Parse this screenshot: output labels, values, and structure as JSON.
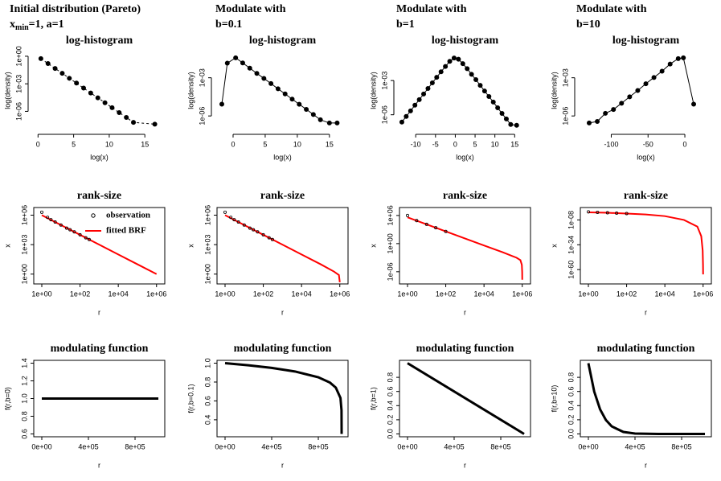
{
  "headers": [
    {
      "line1": "Initial distribution (Pareto)",
      "line2": {
        "base": "x",
        "sub": "min",
        "rest": "=1, a=1"
      }
    },
    {
      "line1": "Modulate with",
      "line2": "b=0.1"
    },
    {
      "line1": "Modulate with",
      "line2": "b=1"
    },
    {
      "line1": "Modulate with",
      "line2": "b=10"
    }
  ],
  "chart_data": [
    {
      "type": "scatter",
      "title": "log-histogram",
      "xlabel": "log(x)",
      "ylabel": "log(density)",
      "ylog": true,
      "frame": false,
      "xlim": [
        -0.6,
        17.8
      ],
      "xticks": [
        0,
        5,
        10,
        15
      ],
      "ylim": [
        1.3e-08,
        2.7
      ],
      "yticks": [
        {
          "value": 1,
          "label": "1e+00"
        },
        {
          "value": 0.001,
          "label": "1e-03"
        },
        {
          "value": 1e-06,
          "label": "1e-06"
        }
      ],
      "series": [
        {
          "color": "#000000",
          "mode": "points+line",
          "dash": true,
          "linewidth": 1,
          "marker": "filled",
          "x": [
            0.4,
            1.4,
            2.4,
            3.4,
            4.4,
            5.4,
            6.4,
            7.4,
            8.4,
            9.4,
            10.4,
            11.4,
            12.4,
            13.4,
            16.4
          ],
          "values": [
            0.55,
            0.16,
            0.047,
            0.014,
            0.004,
            0.0012,
            0.00034,
            0.0001,
            3e-05,
            8.7e-06,
            2.5e-06,
            7.4e-07,
            2.2e-07,
            6.3e-08,
            4e-08
          ]
        }
      ]
    },
    {
      "type": "scatter",
      "title": "log-histogram",
      "xlabel": "log(x)",
      "ylabel": "log(density)",
      "ylog": true,
      "frame": false,
      "xlim": [
        -2.5,
        17.9
      ],
      "xticks": [
        0,
        5,
        10,
        15
      ],
      "ylim": [
        1e-07,
        0.1
      ],
      "yticks": [
        {
          "value": 0.001,
          "label": "1e-03"
        },
        {
          "value": 1e-06,
          "label": "1e-06"
        }
      ],
      "series": [
        {
          "color": "#000000",
          "mode": "points+line",
          "dash": false,
          "linewidth": 1,
          "marker": "filled",
          "x": [
            -1.75,
            -0.9,
            0.4,
            1.5,
            2.6,
            3.7,
            4.8,
            5.9,
            7.0,
            8.1,
            9.2,
            10.3,
            11.4,
            12.5,
            13.6,
            15.0,
            16.2
          ],
          "values": [
            8.5e-06,
            0.014,
            0.037,
            0.0145,
            0.0057,
            0.0022,
            0.00089,
            0.00035,
            0.000135,
            5.4e-05,
            2.1e-05,
            8.3e-06,
            3.3e-06,
            1.3e-06,
            5e-07,
            2.8e-07,
            2.8e-07
          ]
        }
      ]
    },
    {
      "type": "scatter",
      "title": "log-histogram",
      "xlabel": "log(x)",
      "ylabel": "log(density)",
      "ylog": true,
      "frame": false,
      "xlim": [
        -14.1,
        19
      ],
      "xticks": [
        -10,
        -5,
        0,
        5,
        10,
        15
      ],
      "ylim": [
        6e-08,
        0.3
      ],
      "yticks": [
        {
          "value": 0.001,
          "label": "1e-03"
        },
        {
          "value": 1e-06,
          "label": "1e-06"
        }
      ],
      "series": [
        {
          "color": "#000000",
          "mode": "points+line",
          "dash": false,
          "linewidth": 1,
          "marker": "filled",
          "x": [
            -13.5,
            -12.4,
            -11.3,
            -10.2,
            -9.1,
            -8,
            -6.9,
            -5.8,
            -4.7,
            -3.6,
            -2.5,
            -1.4,
            -0.3,
            0.8,
            1.9,
            3,
            4.1,
            5.2,
            6.3,
            7.4,
            8.5,
            9.6,
            10.7,
            11.8,
            12.9,
            14,
            15.5
          ],
          "values": [
            2.3e-07,
            7.1e-07,
            2.2e-06,
            6.9e-06,
            2.1e-05,
            6.6e-05,
            0.0002,
            0.00063,
            0.0019,
            0.0059,
            0.017,
            0.048,
            0.095,
            0.074,
            0.03,
            0.011,
            0.0035,
            0.0012,
            0.00038,
            0.00012,
            4e-05,
            1.3e-05,
            4.1e-06,
            1.3e-06,
            4.3e-07,
            1.4e-07,
            1.2e-07
          ]
        }
      ]
    },
    {
      "type": "scatter",
      "title": "log-histogram",
      "xlabel": "log(x)",
      "ylabel": "log(density)",
      "ylog": true,
      "frame": false,
      "xlim": [
        -142,
        36
      ],
      "xticks": [
        -100,
        -50,
        0
      ],
      "ylim": [
        1e-07,
        0.1
      ],
      "yticks": [
        {
          "value": 0.001,
          "label": "1e-03"
        },
        {
          "value": 1e-06,
          "label": "1e-06"
        }
      ],
      "series": [
        {
          "color": "#000000",
          "mode": "points+line",
          "dash": false,
          "linewidth": 1,
          "marker": "filled",
          "x": [
            -130,
            -119,
            -108,
            -97,
            -86,
            -75,
            -64,
            -53,
            -42,
            -31,
            -20,
            -9,
            -2,
            12
          ],
          "values": [
            2.8e-07,
            3.7e-07,
            1.6e-06,
            3.2e-06,
            1e-05,
            3.2e-05,
            0.0001,
            0.00034,
            0.00105,
            0.0033,
            0.012,
            0.032,
            0.037,
            8.5e-06
          ]
        }
      ]
    },
    {
      "type": "line",
      "title": "rank-size",
      "xlabel": "r",
      "ylabel": "x",
      "xlog": true,
      "ylog": true,
      "frame": true,
      "legend": "topright",
      "xlim": [
        0.38,
        2700000.0
      ],
      "xticks": [
        {
          "value": 1,
          "label": "1e+00"
        },
        {
          "value": 100,
          "label": "1e+02"
        },
        {
          "value": 10000,
          "label": "1e+04"
        },
        {
          "value": 1000000,
          "label": "1e+06"
        }
      ],
      "ylim": [
        0.1,
        6000000.0
      ],
      "yticks": [
        {
          "value": 1,
          "label": "1e+00"
        },
        {
          "value": 1000,
          "label": "1e+03"
        },
        {
          "value": 1000000,
          "label": "1e+06"
        }
      ],
      "series": [
        {
          "name": "observation",
          "color": "#000000",
          "mode": "points",
          "marker": "open",
          "x": [
            1,
            2,
            3,
            5,
            10,
            20,
            30,
            50,
            100,
            200,
            300
          ],
          "values": [
            2000000,
            600000,
            350000,
            200000,
            100000,
            48000,
            33000,
            20000,
            10000,
            5000,
            3300
          ]
        },
        {
          "name": "fitted BRF",
          "color": "#ff0000",
          "mode": "line",
          "linewidth": 2,
          "x": [
            1,
            10,
            100,
            1000,
            10000,
            100000,
            1000000
          ],
          "values": [
            1000000,
            100000,
            10000,
            1000,
            100,
            10,
            1
          ]
        }
      ]
    },
    {
      "type": "line",
      "title": "rank-size",
      "xlabel": "r",
      "ylabel": "x",
      "xlog": true,
      "ylog": true,
      "frame": true,
      "xlim": [
        0.38,
        2700000.0
      ],
      "xticks": [
        {
          "value": 1,
          "label": "1e+00"
        },
        {
          "value": 100,
          "label": "1e+02"
        },
        {
          "value": 10000,
          "label": "1e+04"
        },
        {
          "value": 1000000,
          "label": "1e+06"
        }
      ],
      "ylim": [
        0.1,
        6000000.0
      ],
      "yticks": [
        {
          "value": 1,
          "label": "1e+00"
        },
        {
          "value": 1000,
          "label": "1e+03"
        },
        {
          "value": 1000000,
          "label": "1e+06"
        }
      ],
      "series": [
        {
          "color": "#000000",
          "mode": "points",
          "marker": "open",
          "x": [
            1,
            2,
            3,
            5,
            10,
            20,
            30,
            50,
            100,
            200,
            300
          ],
          "values": [
            2000000,
            600000,
            350000,
            200000,
            100000,
            48000,
            33000,
            20000,
            10000,
            5000,
            3300
          ]
        },
        {
          "color": "#ff0000",
          "mode": "line",
          "linewidth": 2,
          "x": [
            1,
            10,
            100,
            1000,
            10000,
            100000,
            500000,
            900000,
            1000000
          ],
          "values": [
            1000000,
            100000,
            10000,
            1000,
            100,
            10,
            1.8,
            0.8,
            0.15
          ]
        }
      ]
    },
    {
      "type": "line",
      "title": "rank-size",
      "xlabel": "r",
      "ylabel": "x",
      "xlog": true,
      "ylog": true,
      "frame": true,
      "xlim": [
        0.38,
        2700000.0
      ],
      "xticks": [
        {
          "value": 1,
          "label": "1e+00"
        },
        {
          "value": 100,
          "label": "1e+02"
        },
        {
          "value": 10000,
          "label": "1e+04"
        },
        {
          "value": 1000000,
          "label": "1e+06"
        }
      ],
      "ylim": [
        2.5e-09,
        50000000.0
      ],
      "yticks": [
        {
          "value": 1e-06,
          "label": "1e-06"
        },
        {
          "value": 1,
          "label": "1e+00"
        },
        {
          "value": 1000000,
          "label": "1e+06"
        }
      ],
      "series": [
        {
          "color": "#000000",
          "mode": "points",
          "marker": "open",
          "x": [
            1,
            3,
            10,
            30,
            100
          ],
          "values": [
            1000000,
            80000,
            13000,
            2500,
            400
          ]
        },
        {
          "color": "#ff0000",
          "mode": "line",
          "linewidth": 2,
          "x": [
            1,
            10,
            100,
            1000,
            10000,
            100000,
            500000,
            800000,
            950000,
            990000,
            1000000
          ],
          "values": [
            400000,
            13000,
            400,
            13,
            0.4,
            0.013,
            0.001,
            0.0003,
            3e-05,
            1e-06,
            2e-08
          ]
        }
      ]
    },
    {
      "type": "line",
      "title": "rank-size",
      "xlabel": "r",
      "ylabel": "x",
      "xlog": true,
      "ylog": true,
      "frame": true,
      "xlim": [
        0.38,
        2700000.0
      ],
      "xticks": [
        {
          "value": 1,
          "label": "1e+00"
        },
        {
          "value": 100,
          "label": "1e+02"
        },
        {
          "value": 10000,
          "label": "1e+04"
        },
        {
          "value": 1000000,
          "label": "1e+06"
        }
      ],
      "ylim": [
        1e-75,
        100000.0
      ],
      "yticks": [
        {
          "value": 1e-60,
          "label": "1e-60"
        },
        {
          "value": 1e-34,
          "label": "1e-34"
        },
        {
          "value": 1e-08,
          "label": "1e-08"
        }
      ],
      "series": [
        {
          "color": "#000000",
          "mode": "points",
          "marker": "open",
          "x": [
            1,
            3,
            10,
            30,
            100
          ],
          "values": [
            3,
            1,
            0.3,
            0.12,
            0.05
          ]
        },
        {
          "color": "#ff0000",
          "mode": "line",
          "linewidth": 2,
          "x": [
            1,
            10,
            100,
            1000,
            10000,
            100000,
            500000,
            800000,
            950000,
            990000,
            1000000
          ],
          "values": [
            1,
            0.3,
            0.05,
            0.005,
            0.0001,
            1e-08,
            1e-15,
            1e-25,
            1e-40,
            1e-55,
            1e-65
          ]
        }
      ]
    },
    {
      "type": "line",
      "title": "modulating function",
      "xlabel": "r",
      "ylabel": "f(r,b=0)",
      "frame": true,
      "xlim": [
        -69000,
        1055000
      ],
      "xticks": [
        {
          "value": 0,
          "label": "0e+00"
        },
        {
          "value": 400000,
          "label": "4e+05"
        },
        {
          "value": 800000,
          "label": "8e+05"
        }
      ],
      "ylim": [
        0.568,
        1.432
      ],
      "yticks": [
        0.6,
        0.8,
        {
          "value": 1,
          "label": "1.0"
        },
        1.2,
        1.4
      ],
      "series": [
        {
          "color": "#000000",
          "mode": "line",
          "linewidth": 3,
          "x": [
            0,
            1000000
          ],
          "values": [
            1,
            1
          ]
        }
      ]
    },
    {
      "type": "line",
      "title": "modulating function",
      "xlabel": "r",
      "ylabel": "f(r,b=0.1)",
      "frame": true,
      "xlim": [
        -69000,
        1055000
      ],
      "xticks": [
        {
          "value": 0,
          "label": "0e+00"
        },
        {
          "value": 400000,
          "label": "4e+05"
        },
        {
          "value": 800000,
          "label": "8e+05"
        }
      ],
      "ylim": [
        0.22,
        1.03
      ],
      "yticks": [
        0.4,
        0.6,
        0.8,
        {
          "value": 1,
          "label": "1.0"
        }
      ],
      "series": [
        {
          "color": "#000000",
          "mode": "line",
          "linewidth": 3,
          "x": [
            0,
            200000,
            400000,
            600000,
            800000,
            900000,
            950000,
            990000,
            999000,
            1000000
          ],
          "values": [
            1,
            0.978,
            0.95,
            0.912,
            0.851,
            0.794,
            0.741,
            0.631,
            0.501,
            0.25
          ]
        }
      ]
    },
    {
      "type": "line",
      "title": "modulating function",
      "xlabel": "r",
      "ylabel": "f(r,b=1)",
      "frame": true,
      "xlim": [
        -69000,
        1055000
      ],
      "xticks": [
        {
          "value": 0,
          "label": "0e+00"
        },
        {
          "value": 400000,
          "label": "4e+05"
        },
        {
          "value": 800000,
          "label": "8e+05"
        }
      ],
      "ylim": [
        -0.04,
        1.04
      ],
      "yticks": [
        {
          "value": 0,
          "label": "0.0"
        },
        0.2,
        0.4,
        0.6,
        0.8
      ],
      "series": [
        {
          "color": "#000000",
          "mode": "line",
          "linewidth": 3,
          "x": [
            0,
            1000000
          ],
          "values": [
            1,
            0
          ]
        }
      ]
    },
    {
      "type": "line",
      "title": "modulating function",
      "xlabel": "r",
      "ylabel": "f(r,b=10)",
      "frame": true,
      "xlim": [
        -69000,
        1055000
      ],
      "xticks": [
        {
          "value": 0,
          "label": "0e+00"
        },
        {
          "value": 400000,
          "label": "4e+05"
        },
        {
          "value": 800000,
          "label": "8e+05"
        }
      ],
      "ylim": [
        -0.04,
        1.04
      ],
      "yticks": [
        {
          "value": 0,
          "label": "0.0"
        },
        0.2,
        0.4,
        0.6,
        0.8
      ],
      "series": [
        {
          "color": "#000000",
          "mode": "line",
          "linewidth": 3,
          "x": [
            0,
            50000,
            100000,
            150000,
            200000,
            300000,
            400000,
            600000,
            1000000
          ],
          "values": [
            1,
            0.599,
            0.349,
            0.197,
            0.107,
            0.028,
            0.006,
            0.0001,
            0
          ]
        }
      ]
    }
  ]
}
